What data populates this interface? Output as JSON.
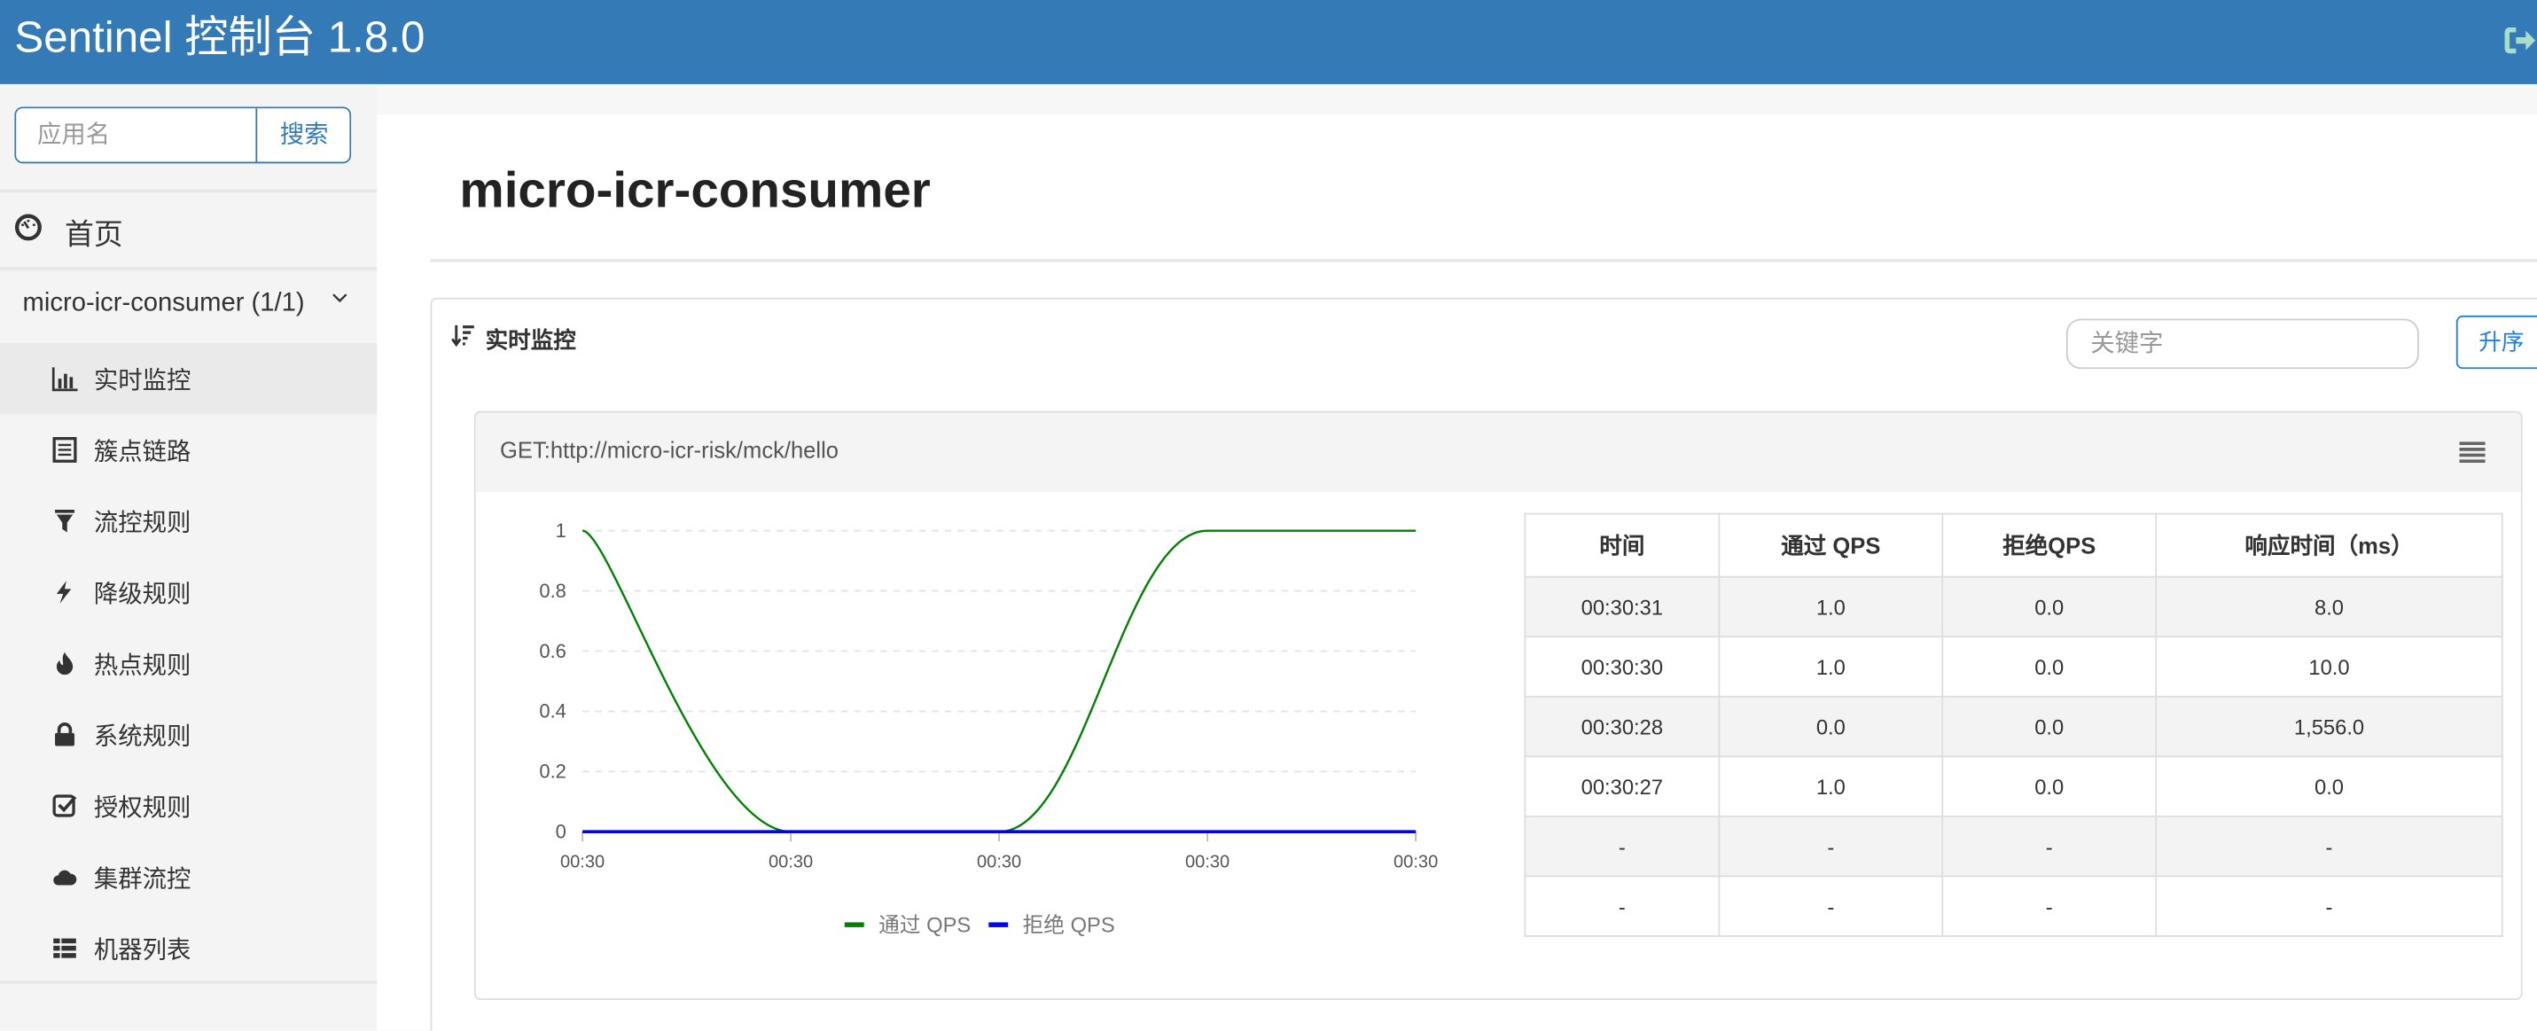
{
  "header": {
    "title": "Sentinel 控制台 1.8.0",
    "logout_icon": "sign-out-icon",
    "bg_color": "#337ab7"
  },
  "sidebar": {
    "search_placeholder": "应用名",
    "search_button": "搜索",
    "home": {
      "label": "首页",
      "icon": "dashboard-icon"
    },
    "app": {
      "label": "micro-icr-consumer (1/1)",
      "icon": "chevron-down-icon"
    },
    "items": [
      {
        "label": "实时监控",
        "icon": "bar-chart-icon",
        "active": true
      },
      {
        "label": "簇点链路",
        "icon": "list-alt-icon"
      },
      {
        "label": "流控规则",
        "icon": "filter-icon"
      },
      {
        "label": "降级规则",
        "icon": "flash-icon"
      },
      {
        "label": "热点规则",
        "icon": "fire-icon"
      },
      {
        "label": "系统规则",
        "icon": "lock-icon"
      },
      {
        "label": "授权规则",
        "icon": "check-icon"
      },
      {
        "label": "集群流控",
        "icon": "cloud-icon"
      },
      {
        "label": "机器列表",
        "icon": "th-list-icon"
      }
    ]
  },
  "main": {
    "page_title": "micro-icr-consumer",
    "card": {
      "title": "实时监控",
      "keyword_placeholder": "关键字",
      "sort_button": "升序"
    },
    "resource": {
      "name": "GET:http://micro-icr-risk/mck/hello",
      "table": {
        "headers": [
          "时间",
          "通过 QPS",
          "拒绝QPS",
          "响应时间（ms）"
        ],
        "rows": [
          [
            "00:30:31",
            "1.0",
            "0.0",
            "8.0"
          ],
          [
            "00:30:30",
            "1.0",
            "0.0",
            "10.0"
          ],
          [
            "00:30:28",
            "0.0",
            "0.0",
            "1,556.0"
          ],
          [
            "00:30:27",
            "1.0",
            "0.0",
            "0.0"
          ],
          [
            "-",
            "-",
            "-",
            "-"
          ],
          [
            "-",
            "-",
            "-",
            "-"
          ]
        ]
      }
    }
  },
  "chart_data": {
    "type": "line",
    "x": [
      "00:30",
      "00:30",
      "00:30",
      "00:30",
      "00:30"
    ],
    "y_ticks": [
      "0",
      "0.2",
      "0.4",
      "0.6",
      "0.8",
      "1"
    ],
    "ylim": [
      0,
      1
    ],
    "grid": "horizontal dashed",
    "legend_position": "bottom",
    "series": [
      {
        "name": "通过 QPS",
        "color": "#008000",
        "values": [
          1,
          0,
          0,
          1,
          1
        ]
      },
      {
        "name": "拒绝 QPS",
        "color": "#0000ff",
        "values": [
          0,
          0,
          0,
          0,
          0
        ]
      }
    ]
  }
}
